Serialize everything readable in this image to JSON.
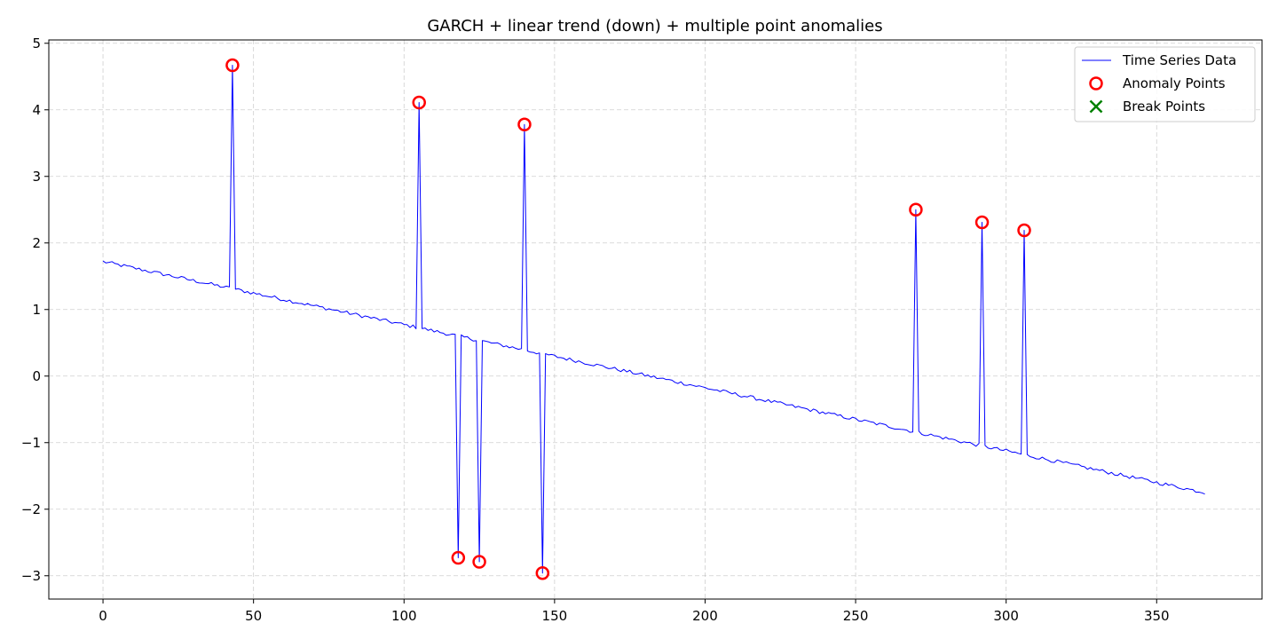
{
  "chart_data": {
    "type": "line",
    "title": "GARCH + linear trend (down) + multiple point anomalies",
    "xlabel": "",
    "ylabel": "",
    "xlim": [
      -18,
      385
    ],
    "ylim": [
      -3.35,
      5.05
    ],
    "x_ticks": [
      0,
      50,
      100,
      150,
      200,
      250,
      300,
      350
    ],
    "y_ticks": [
      5,
      4,
      3,
      2,
      1,
      0,
      -1,
      -2,
      -3
    ],
    "x_tick_labels": [
      "0",
      "50",
      "100",
      "150",
      "200",
      "250",
      "300",
      "350"
    ],
    "y_tick_labels": [
      "5",
      "4",
      "3",
      "2",
      "1",
      "0",
      "−1",
      "−2",
      "−3"
    ],
    "grid": true,
    "legend_position": "top-right",
    "trend": {
      "start": 1.72,
      "end": -1.75,
      "n_points": 367
    },
    "series": [
      {
        "name": "Time Series Data",
        "kind": "line",
        "color": "#0000ff"
      },
      {
        "name": "Anomaly Points",
        "kind": "scatter",
        "marker": "open-circle",
        "color": "#ff0000",
        "points": [
          {
            "x": 43,
            "y": 4.67
          },
          {
            "x": 105,
            "y": 4.11
          },
          {
            "x": 118,
            "y": -2.73
          },
          {
            "x": 125,
            "y": -2.79
          },
          {
            "x": 140,
            "y": 3.78
          },
          {
            "x": 146,
            "y": -2.96
          },
          {
            "x": 270,
            "y": 2.5
          },
          {
            "x": 292,
            "y": 2.31
          },
          {
            "x": 306,
            "y": 2.19
          }
        ]
      },
      {
        "name": "Break Points",
        "kind": "scatter",
        "marker": "x",
        "color": "#008000",
        "points": []
      }
    ]
  }
}
